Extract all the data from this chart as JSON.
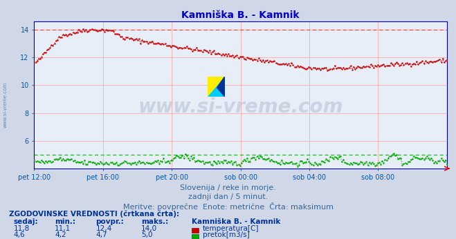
{
  "title": "Kamniška B. - Kamnik",
  "title_color": "#0000cc",
  "bg_color": "#d0d8e8",
  "plot_bg_color": "#e8eef8",
  "grid_color": "#ffaaaa",
  "x_labels": [
    "pet 12:00",
    "pet 16:00",
    "pet 20:00",
    "sob 00:00",
    "sob 04:00",
    "sob 08:00"
  ],
  "x_ticks_norm": [
    0.0,
    0.1667,
    0.3333,
    0.5,
    0.6667,
    0.8333
  ],
  "ylim_low": 4.0,
  "ylim_high": 14.6,
  "yticks": [
    6,
    8,
    10,
    12,
    14
  ],
  "tick_color": "#0055aa",
  "axis_color": "#0000aa",
  "n_points": 288,
  "temp_color": "#cc0000",
  "flow_color": "#00aa00",
  "max_temp_color": "#ff4444",
  "max_flow_color": "#00cc00",
  "watermark_text": "www.si-vreme.com",
  "watermark_color": "#1a3a6a",
  "watermark_alpha": 0.15,
  "subtitle1": "Slovenija / reke in morje.",
  "subtitle2": "zadnji dan / 5 minut.",
  "subtitle3": "Meritve: povprečne  Enote: metrične  Črta: maksimum",
  "subtitle_color": "#336699",
  "legend_title": "ZGODOVINSKE VREDNOSTI (črtkana črta):",
  "legend_headers": [
    "sedaj:",
    "min.:",
    "povpr.:",
    "maks.:"
  ],
  "legend_values_temp": [
    "11,8",
    "11,1",
    "12,4",
    "14,0"
  ],
  "legend_values_flow": [
    "4,6",
    "4,2",
    "4,7",
    "5,0"
  ],
  "legend_label_temp": "temperatura[C]",
  "legend_label_flow": "pretok[m3/s]",
  "legend_color": "#003399",
  "temp_max_line": 14.0,
  "flow_max_line": 5.0,
  "left_label": "www.si-vreme.com",
  "left_label_color": "#336699"
}
